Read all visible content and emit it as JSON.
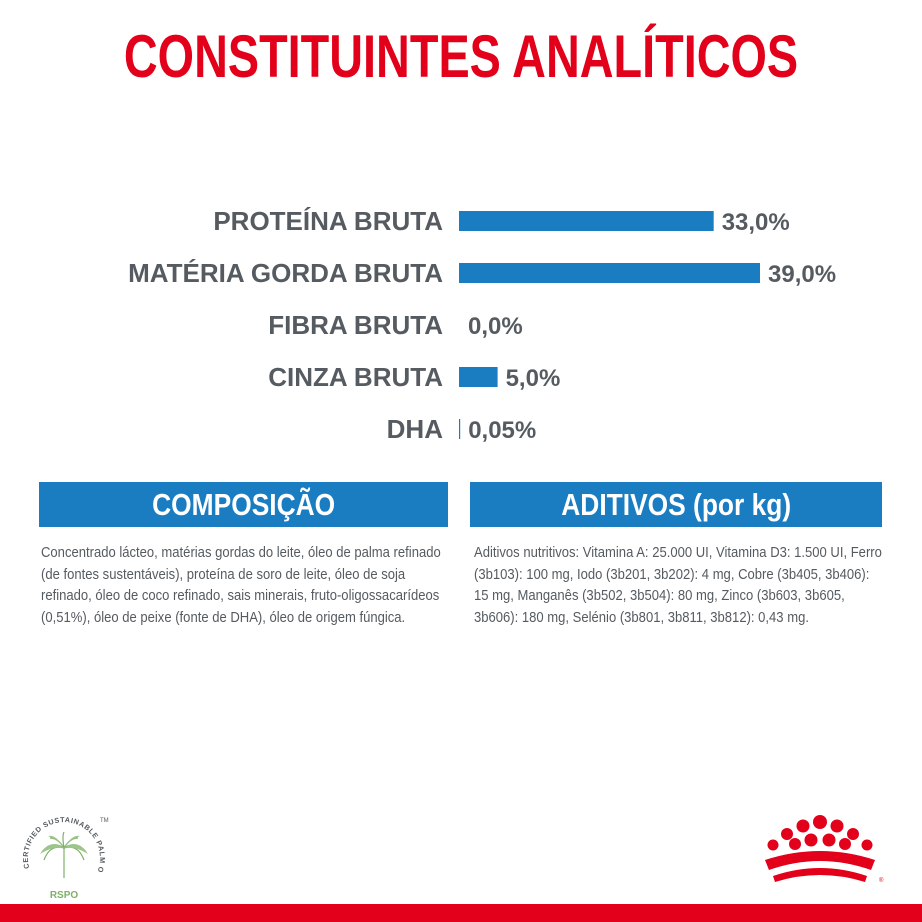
{
  "title": "CONSTITUINTES ANALÍTICOS",
  "chart_data": {
    "type": "bar",
    "orientation": "horizontal",
    "categories": [
      "PROTEÍNA BRUTA",
      "MATÉRIA GORDA BRUTA",
      "FIBRA BRUTA",
      "CINZA BRUTA",
      "DHA"
    ],
    "values": [
      33.0,
      39.0,
      0.0,
      5.0,
      0.05
    ],
    "value_labels": [
      "33,0%",
      "39,0%",
      "0,0%",
      "5,0%",
      "0,05%"
    ],
    "bar_color": "#1a7dc2",
    "xlim": [
      0,
      39
    ],
    "grid": false
  },
  "composition": {
    "header": "COMPOSIÇÃO",
    "text": "Concentrado lácteo, matérias gordas do leite, óleo de palma refinado (de fontes sustentáveis), proteína de soro de leite, óleo de soja refinado, óleo de coco refinado, sais minerais, fruto-oligossacarídeos (0,51%), óleo de peixe (fonte de DHA), óleo de origem fúngica."
  },
  "additives": {
    "header": "ADITIVOS (por kg)",
    "text": "Aditivos nutritivos: Vitamina A: 25.000 UI, Vitamina D3: 1.500 UI, Ferro (3b103): 100 mg, Iodo (3b201, 3b202): 4 mg, Cobre (3b405, 3b406): 15 mg, Manganês (3b502, 3b504): 80 mg, Zinco (3b603, 3b605, 3b606): 180 mg, Selénio (3b801, 3b811, 3b812): 0,43 mg."
  },
  "rspo_logo": {
    "arc_text": "CERTIFIED SUSTAINABLE PALM OIL",
    "name": "RSPO",
    "tm": "TM"
  },
  "colors": {
    "brand_red": "#e2001a",
    "blue": "#1a7dc2",
    "text_gray": "#555b60"
  },
  "icons": [
    "rspo-palm-icon",
    "royal-canin-crown-icon"
  ]
}
